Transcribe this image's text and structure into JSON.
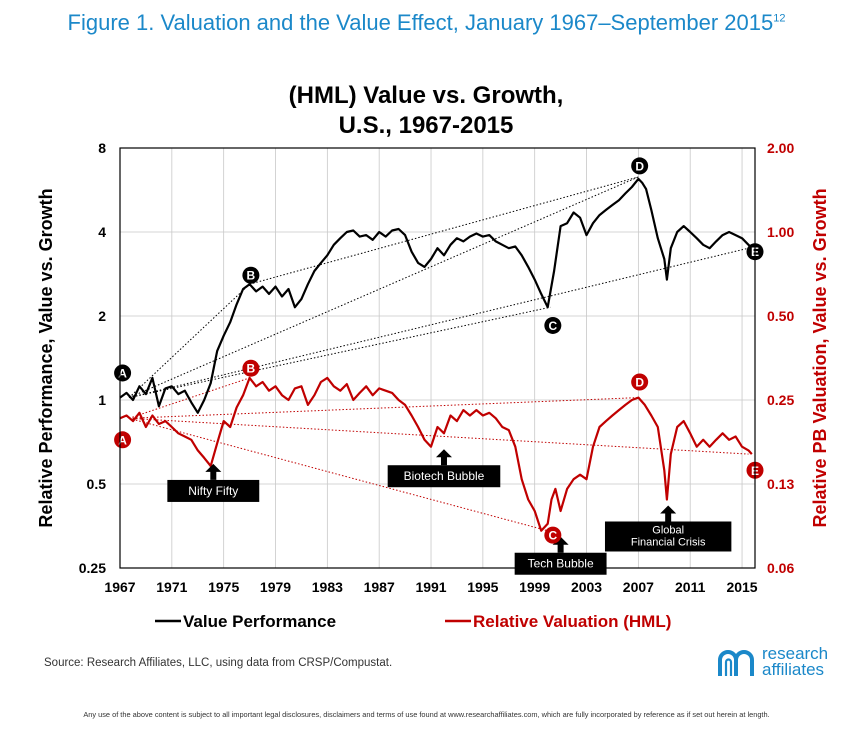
{
  "figure_title": "Figure 1. Valuation and the Value Effect, January 1967–September 2015",
  "figure_title_sup": "12",
  "source_note": "Source: Research Affiliates, LLC, using data from CRSP/Compustat.",
  "logo": {
    "name_line1": "research",
    "name_line2": "affiliates",
    "icon": "research-affiliates-logo-mark",
    "color": "#1b88c9"
  },
  "disclaimer": "Any use of the above content is subject to all important legal disclosures, disclaimers and terms of use found at www.researchaffiliates.com, which are fully incorporated by reference as if set out herein at length.",
  "chart_data": {
    "type": "line",
    "title_line1": "(HML) Value vs. Growth,",
    "title_line2": "U.S., 1967-2015",
    "xlabel": "",
    "ylabel_left": "Relative Performance, Value vs. Growth",
    "ylabel_right": "Relative PB Valuation, Value vs. Growth",
    "xlim": [
      1967,
      2016
    ],
    "x_ticks": [
      1967,
      1971,
      1975,
      1979,
      1983,
      1987,
      1991,
      1995,
      1999,
      2003,
      2007,
      2011,
      2015
    ],
    "left_axis": {
      "scale": "log2",
      "lim": [
        0.25,
        8
      ],
      "ticks": [
        0.25,
        0.5,
        1,
        2,
        4,
        8
      ],
      "tick_labels": [
        "0.25",
        "0.5",
        "1",
        "2",
        "4",
        "8"
      ]
    },
    "right_axis": {
      "scale": "log2",
      "lim": [
        0.0625,
        2
      ],
      "ticks": [
        0.0625,
        0.125,
        0.25,
        0.5,
        1,
        2
      ],
      "tick_labels": [
        "0.06",
        "0.13",
        "0.25",
        "0.50",
        "1.00",
        "2.00"
      ],
      "color": "#c00000"
    },
    "grid": true,
    "legend_position": "bottom",
    "series": [
      {
        "name": "Value Performance",
        "axis": "left",
        "color": "#000000",
        "x": [
          1967,
          1967.5,
          1968,
          1968.5,
          1969,
          1969.5,
          1970,
          1970.5,
          1971,
          1971.5,
          1972,
          1972.5,
          1973,
          1973.5,
          1974,
          1974.5,
          1975,
          1975.5,
          1976,
          1976.5,
          1977,
          1977.5,
          1978,
          1978.5,
          1979,
          1979.5,
          1980,
          1980.5,
          1981,
          1981.5,
          1982,
          1982.5,
          1983,
          1983.5,
          1984,
          1984.5,
          1985,
          1985.5,
          1986,
          1986.5,
          1987,
          1987.5,
          1988,
          1988.5,
          1989,
          1989.5,
          1990,
          1990.5,
          1991,
          1991.5,
          1992,
          1992.5,
          1993,
          1993.5,
          1994,
          1994.5,
          1995,
          1995.5,
          1996,
          1996.5,
          1997,
          1997.5,
          1998,
          1998.5,
          1999,
          1999.5,
          2000,
          2000.5,
          2001,
          2001.5,
          2002,
          2002.5,
          2003,
          2003.5,
          2004,
          2004.5,
          2005,
          2005.5,
          2006,
          2006.5,
          2007,
          2007.3,
          2007.6,
          2008,
          2008.5,
          2009,
          2009.2,
          2009.5,
          2010,
          2010.5,
          2011,
          2011.5,
          2012,
          2012.5,
          2013,
          2013.5,
          2014,
          2014.5,
          2015,
          2015.5,
          2015.75
        ],
        "values": [
          1.02,
          1.06,
          1.0,
          1.12,
          1.05,
          1.2,
          0.95,
          1.1,
          1.12,
          1.05,
          1.08,
          0.98,
          0.9,
          1.0,
          1.15,
          1.5,
          1.7,
          1.9,
          2.2,
          2.5,
          2.6,
          2.45,
          2.55,
          2.4,
          2.55,
          2.35,
          2.5,
          2.15,
          2.3,
          2.6,
          2.9,
          3.1,
          3.3,
          3.6,
          3.8,
          4.0,
          4.05,
          3.85,
          3.9,
          3.75,
          4.0,
          3.85,
          4.05,
          4.1,
          3.9,
          3.4,
          3.1,
          3.0,
          3.2,
          3.5,
          3.3,
          3.6,
          3.8,
          3.7,
          3.85,
          3.95,
          3.85,
          3.9,
          3.7,
          3.6,
          3.5,
          3.55,
          3.3,
          3.0,
          2.7,
          2.4,
          2.15,
          2.9,
          4.2,
          4.3,
          4.7,
          4.5,
          3.9,
          4.3,
          4.6,
          4.8,
          5.0,
          5.2,
          5.5,
          5.8,
          6.2,
          6.0,
          5.7,
          4.8,
          3.8,
          3.2,
          2.7,
          3.5,
          4.0,
          4.2,
          4.0,
          3.8,
          3.6,
          3.5,
          3.7,
          3.9,
          4.0,
          3.9,
          3.8,
          3.6,
          3.5
        ]
      },
      {
        "name": "Relative Valuation (HML)",
        "axis": "right",
        "color": "#c00000",
        "x": [
          1967,
          1967.5,
          1968,
          1968.5,
          1969,
          1969.5,
          1970,
          1970.5,
          1971,
          1971.5,
          1972,
          1972.5,
          1973,
          1973.5,
          1974,
          1974.5,
          1975,
          1975.5,
          1976,
          1976.5,
          1977,
          1977.5,
          1978,
          1978.5,
          1979,
          1979.5,
          1980,
          1980.5,
          1981,
          1981.5,
          1982,
          1982.5,
          1983,
          1983.5,
          1984,
          1984.5,
          1985,
          1985.5,
          1986,
          1986.5,
          1987,
          1987.5,
          1988,
          1988.5,
          1989,
          1989.5,
          1990,
          1990.5,
          1991,
          1991.5,
          1992,
          1992.5,
          1993,
          1993.5,
          1994,
          1994.5,
          1995,
          1995.5,
          1996,
          1996.5,
          1997,
          1997.5,
          1998,
          1998.5,
          1999,
          1999.5,
          2000,
          2000.3,
          2000.6,
          2001,
          2001.5,
          2002,
          2002.5,
          2003,
          2003.5,
          2004,
          2004.5,
          2005,
          2005.5,
          2006,
          2006.5,
          2007,
          2007.5,
          2008,
          2008.5,
          2009,
          2009.2,
          2009.5,
          2010,
          2010.5,
          2011,
          2011.5,
          2012,
          2012.5,
          2013,
          2013.5,
          2014,
          2014.5,
          2015,
          2015.5,
          2015.75
        ],
        "values": [
          0.215,
          0.22,
          0.21,
          0.225,
          0.2,
          0.22,
          0.205,
          0.21,
          0.2,
          0.19,
          0.185,
          0.18,
          0.165,
          0.155,
          0.145,
          0.175,
          0.21,
          0.2,
          0.235,
          0.26,
          0.3,
          0.28,
          0.29,
          0.27,
          0.28,
          0.26,
          0.25,
          0.275,
          0.28,
          0.24,
          0.26,
          0.29,
          0.3,
          0.28,
          0.27,
          0.285,
          0.25,
          0.265,
          0.28,
          0.26,
          0.275,
          0.27,
          0.265,
          0.25,
          0.24,
          0.22,
          0.2,
          0.18,
          0.17,
          0.2,
          0.19,
          0.22,
          0.21,
          0.23,
          0.22,
          0.23,
          0.22,
          0.225,
          0.215,
          0.2,
          0.195,
          0.17,
          0.13,
          0.11,
          0.1,
          0.085,
          0.09,
          0.11,
          0.12,
          0.1,
          0.12,
          0.13,
          0.135,
          0.13,
          0.17,
          0.2,
          0.21,
          0.22,
          0.23,
          0.24,
          0.25,
          0.255,
          0.24,
          0.22,
          0.2,
          0.14,
          0.11,
          0.16,
          0.2,
          0.21,
          0.19,
          0.17,
          0.18,
          0.17,
          0.18,
          0.19,
          0.18,
          0.185,
          0.17,
          0.165,
          0.16
        ]
      }
    ],
    "markers": [
      {
        "label": "A",
        "series": "Value Performance",
        "x": 1967.2,
        "value": 1.25
      },
      {
        "label": "B",
        "series": "Value Performance",
        "x": 1977.1,
        "value": 2.8
      },
      {
        "label": "C",
        "series": "Value Performance",
        "x": 2000.4,
        "value": 1.85
      },
      {
        "label": "D",
        "series": "Value Performance",
        "x": 2007.1,
        "value": 6.9
      },
      {
        "label": "E",
        "series": "Value Performance",
        "x": 2016.0,
        "value": 3.4
      },
      {
        "label": "A",
        "series": "Relative Valuation (HML)",
        "x": 1967.2,
        "value": 0.18
      },
      {
        "label": "B",
        "series": "Relative Valuation (HML)",
        "x": 1977.1,
        "value": 0.325
      },
      {
        "label": "C",
        "series": "Relative Valuation (HML)",
        "x": 2000.4,
        "value": 0.082
      },
      {
        "label": "D",
        "series": "Relative Valuation (HML)",
        "x": 2007.1,
        "value": 0.29
      },
      {
        "label": "E",
        "series": "Relative Valuation (HML)",
        "x": 2016.0,
        "value": 0.14
      }
    ],
    "trend_lines": [
      {
        "series": "Value Performance",
        "from": [
          1967.7,
          1.02
        ],
        "to": [
          1977.0,
          2.6
        ]
      },
      {
        "series": "Value Performance",
        "from": [
          1967.7,
          1.02
        ],
        "to": [
          2000.2,
          2.15
        ]
      },
      {
        "series": "Value Performance",
        "from": [
          1967.7,
          1.02
        ],
        "to": [
          2007.0,
          6.3
        ]
      },
      {
        "series": "Value Performance",
        "from": [
          1967.7,
          1.02
        ],
        "to": [
          2015.5,
          3.5
        ]
      },
      {
        "series": "Value Performance",
        "from": [
          1977.0,
          2.6
        ],
        "to": [
          2007.0,
          6.3
        ]
      },
      {
        "series": "Relative Valuation (HML)",
        "from": [
          1967.7,
          0.215
        ],
        "to": [
          1977.0,
          0.3
        ]
      },
      {
        "series": "Relative Valuation (HML)",
        "from": [
          1967.7,
          0.215
        ],
        "to": [
          2000.0,
          0.085
        ]
      },
      {
        "series": "Relative Valuation (HML)",
        "from": [
          1967.7,
          0.215
        ],
        "to": [
          2007.0,
          0.255
        ]
      },
      {
        "series": "Relative Valuation (HML)",
        "from": [
          1967.7,
          0.215
        ],
        "to": [
          2015.5,
          0.16
        ]
      }
    ],
    "annotations": [
      {
        "text": "Nifty Fifty",
        "x": 1974.2,
        "value": 0.155
      },
      {
        "text": "Biotech Bubble",
        "x": 1992.0,
        "value": 0.175
      },
      {
        "text": "Tech Bubble",
        "x": 2001.0,
        "value": 0.085
      },
      {
        "text": "Global Financial Crisis",
        "x": 2009.3,
        "value": 0.11
      }
    ],
    "legend": [
      {
        "name": "Value Performance",
        "color": "#000000"
      },
      {
        "name": "Relative Valuation (HML)",
        "color": "#c00000"
      }
    ]
  }
}
